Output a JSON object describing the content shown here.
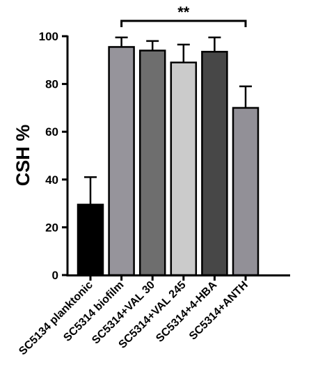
{
  "chart_data": {
    "type": "bar",
    "categories": [
      "SC5134 planktonic",
      "SC5314 biofilm",
      "SC5314+VAL 30",
      "SC5314+VAL 245",
      "SC5314+4-HBA",
      "SC5314+ANTH"
    ],
    "values": [
      29.5,
      95.5,
      94,
      89,
      93.5,
      70
    ],
    "errors": [
      11.5,
      4,
      4,
      7.5,
      6,
      9
    ],
    "colors": [
      "#000000",
      "#96949b",
      "#6e6e6e",
      "#cbcbcb",
      "#474747",
      "#929097"
    ],
    "title": "",
    "xlabel": "",
    "ylabel": "CSH %",
    "ylim": [
      0,
      100
    ],
    "yticks": [
      0,
      20,
      40,
      60,
      80,
      100
    ],
    "grid": false,
    "annotation": {
      "text": "**",
      "from_category": "SC5314 biofilm",
      "to_category": "SC5314+ANTH"
    }
  }
}
